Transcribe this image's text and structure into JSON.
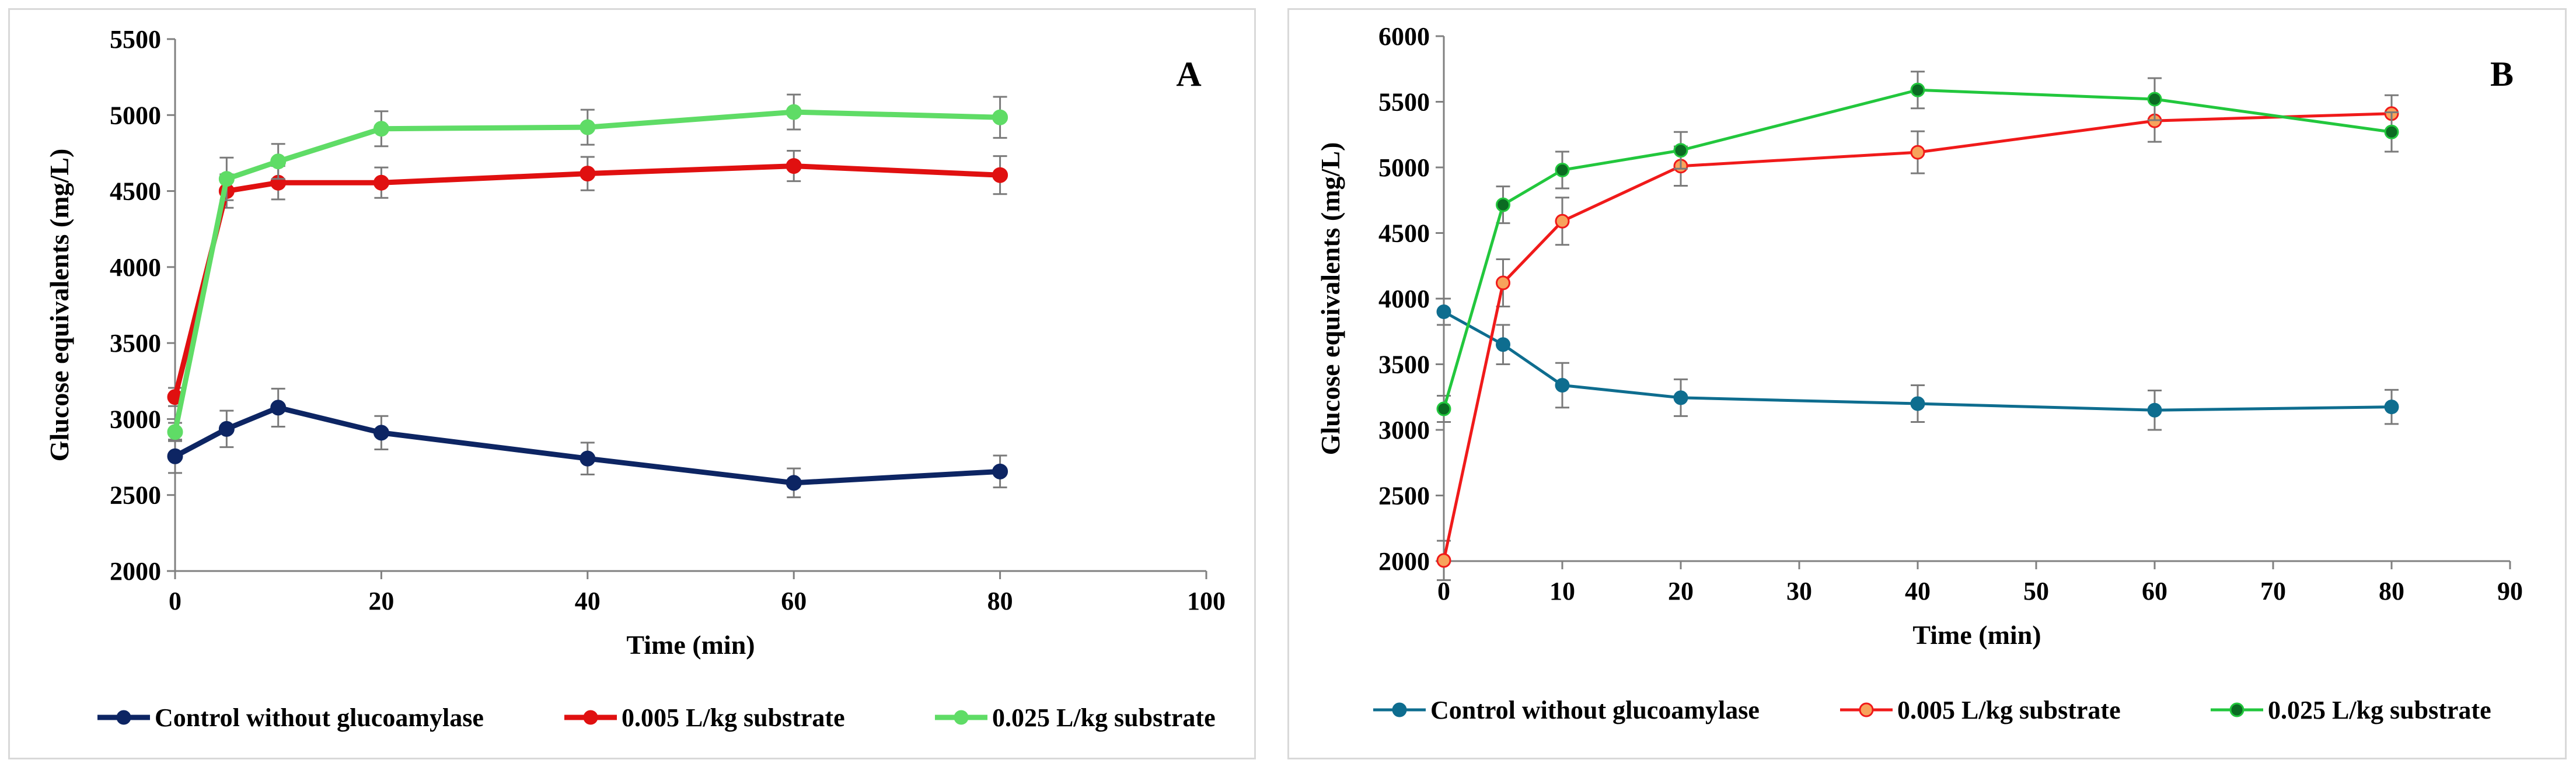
{
  "chart_data": [
    {
      "type": "line",
      "panel_label": "A",
      "xlabel": "Time (min)",
      "ylabel": "Glucose equivalents (mg/L)",
      "xlim": [
        0,
        100
      ],
      "ylim": [
        2000,
        5500
      ],
      "xticks": [
        0,
        20,
        40,
        60,
        80,
        100
      ],
      "yticks": [
        2000,
        2500,
        3000,
        3500,
        4000,
        4500,
        5000,
        5500
      ],
      "grid": false,
      "legend_position": "bottom",
      "series": [
        {
          "name": "Control without glucoamylase",
          "color": "#0d2563",
          "marker": "filled",
          "x": [
            0,
            5,
            10,
            20,
            40,
            60,
            80
          ],
          "y": [
            2755,
            2935,
            3075,
            2910,
            2740,
            2580,
            2655
          ],
          "error": [
            110,
            120,
            125,
            110,
            105,
            95,
            105
          ]
        },
        {
          "name": "0.005 L/kg substrate",
          "color": "#e01010",
          "marker": "filled",
          "x": [
            0,
            5,
            10,
            20,
            40,
            60,
            80
          ],
          "y": [
            3145,
            4500,
            4555,
            4555,
            4615,
            4665,
            4605
          ],
          "error": [
            60,
            110,
            110,
            100,
            110,
            100,
            125
          ]
        },
        {
          "name": "0.025 L/kg substrate",
          "color": "#5fdc66",
          "marker": "filled",
          "x": [
            0,
            5,
            10,
            20,
            40,
            60,
            80
          ],
          "y": [
            2915,
            4580,
            4695,
            4910,
            4920,
            5020,
            4985
          ],
          "error": [
            60,
            140,
            115,
            115,
            115,
            115,
            135
          ]
        }
      ]
    },
    {
      "type": "line",
      "panel_label": "B",
      "xlabel": "Time (min)",
      "ylabel": "Glucose equivalents (mg/L)",
      "xlim": [
        0,
        90
      ],
      "ylim": [
        2000,
        6000
      ],
      "xticks": [
        0,
        10,
        20,
        30,
        40,
        50,
        60,
        70,
        80,
        90
      ],
      "yticks": [
        2000,
        2500,
        3000,
        3500,
        4000,
        4500,
        5000,
        5500,
        6000
      ],
      "grid": false,
      "legend_position": "bottom",
      "series": [
        {
          "name": "Control without glucoamylase",
          "color": "#0e6d8f",
          "marker": "filled",
          "x": [
            0,
            5,
            10,
            20,
            40,
            60,
            80
          ],
          "y": [
            3900,
            3650,
            3340,
            3245,
            3200,
            3150,
            3175
          ],
          "error": [
            100,
            150,
            170,
            140,
            140,
            150,
            130
          ]
        },
        {
          "name": "0.005 L/kg substrate",
          "color": "#f01a1a",
          "marker": "hollow",
          "marker_fill": "#f7a35c",
          "x": [
            0,
            5,
            10,
            20,
            40,
            60,
            80
          ],
          "y": [
            2005,
            4120,
            4590,
            5010,
            5115,
            5355,
            5410
          ],
          "error": [
            150,
            180,
            180,
            150,
            160,
            160,
            140
          ]
        },
        {
          "name": "0.025 L/kg substrate",
          "color": "#22c73d",
          "marker": "dark",
          "marker_fill": "#0b6b22",
          "x": [
            0,
            5,
            10,
            20,
            40,
            60,
            80
          ],
          "y": [
            3160,
            4715,
            4980,
            5130,
            5590,
            5520,
            5270
          ],
          "error": [
            100,
            140,
            140,
            140,
            140,
            160,
            150
          ]
        }
      ]
    }
  ]
}
